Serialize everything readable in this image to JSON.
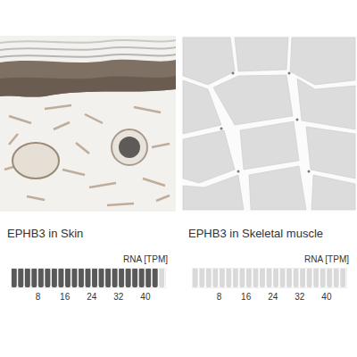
{
  "chart_data": [
    {
      "type": "bar",
      "orientation": "horizontal",
      "title": "EPHB3 in Skin",
      "x_label": "RNA [TPM]",
      "categories": [
        "Skin"
      ],
      "values": [
        44
      ],
      "color": "#595959",
      "xlim": [
        0,
        46
      ],
      "xticks": [
        8,
        16,
        24,
        32,
        40
      ]
    },
    {
      "type": "bar",
      "orientation": "horizontal",
      "title": "EPHB3 in Skeletal muscle",
      "x_label": "RNA [TPM]",
      "categories": [
        "Skeletal muscle"
      ],
      "values": [
        0
      ],
      "color": "#595959",
      "xlim": [
        0,
        46
      ],
      "xticks": [
        8,
        16,
        24,
        32,
        40
      ]
    }
  ]
}
